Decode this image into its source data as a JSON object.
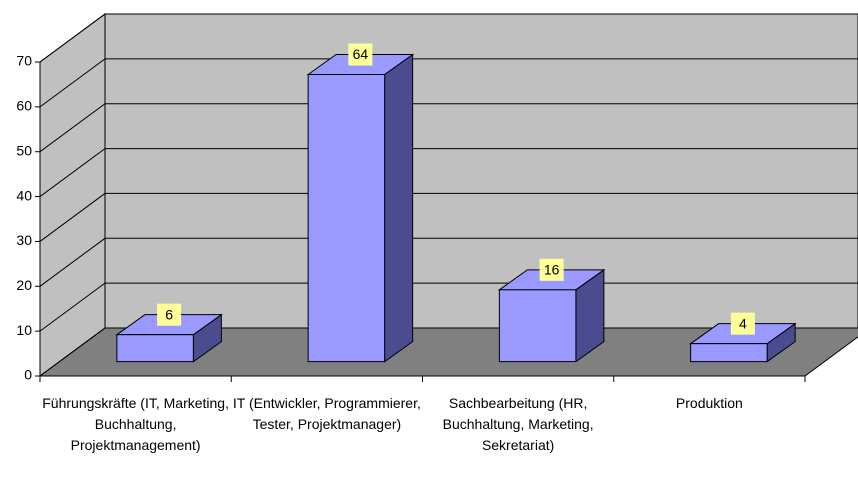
{
  "chart_data": {
    "type": "bar",
    "categories": [
      "Führungskräfte (IT, Marketing, Buchhaltung, Projektmanagement)",
      "IT (Entwickler, Programmierer, Tester, Projektmanager)",
      "Sachbearbeitung (HR, Buchhaltung, Marketing, Sekretariat)",
      "Produktion"
    ],
    "values": [
      6,
      64,
      16,
      4
    ],
    "color": "#9999ff",
    "ylim": [
      0,
      70
    ],
    "yticks": [
      0,
      10,
      20,
      30,
      40,
      50,
      60,
      70
    ],
    "grid": true
  }
}
